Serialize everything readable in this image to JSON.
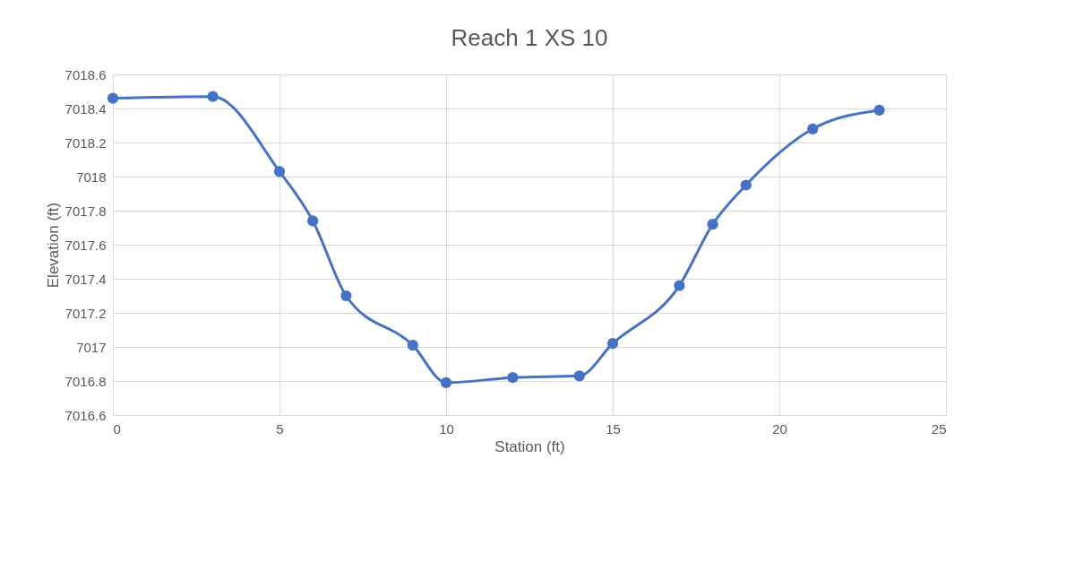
{
  "chart_data": {
    "type": "line",
    "title": "Reach 1 XS 10",
    "xlabel": "Station (ft)",
    "ylabel": "Elevation (ft)",
    "x": [
      0,
      3,
      5,
      6,
      7,
      9,
      10,
      12,
      14,
      15,
      17,
      18,
      19,
      21,
      23
    ],
    "series": [
      {
        "color": "#4472c4",
        "values": [
          7018.46,
          7018.47,
          7018.03,
          7017.74,
          7017.3,
          7017.01,
          7016.79,
          7016.82,
          7016.83,
          7017.02,
          7017.36,
          7017.72,
          7017.95,
          7018.28,
          7018.39
        ]
      }
    ],
    "xlim": [
      0,
      25
    ],
    "xticks": [
      0,
      5,
      10,
      15,
      20,
      25
    ],
    "ylim": [
      7016.6,
      7018.6
    ],
    "yticks": [
      7016.6,
      7016.8,
      7017,
      7017.2,
      7017.4,
      7017.6,
      7017.8,
      7018,
      7018.2,
      7018.4,
      7018.6
    ],
    "grid": true,
    "marker": "circle",
    "line_style": "solid"
  }
}
